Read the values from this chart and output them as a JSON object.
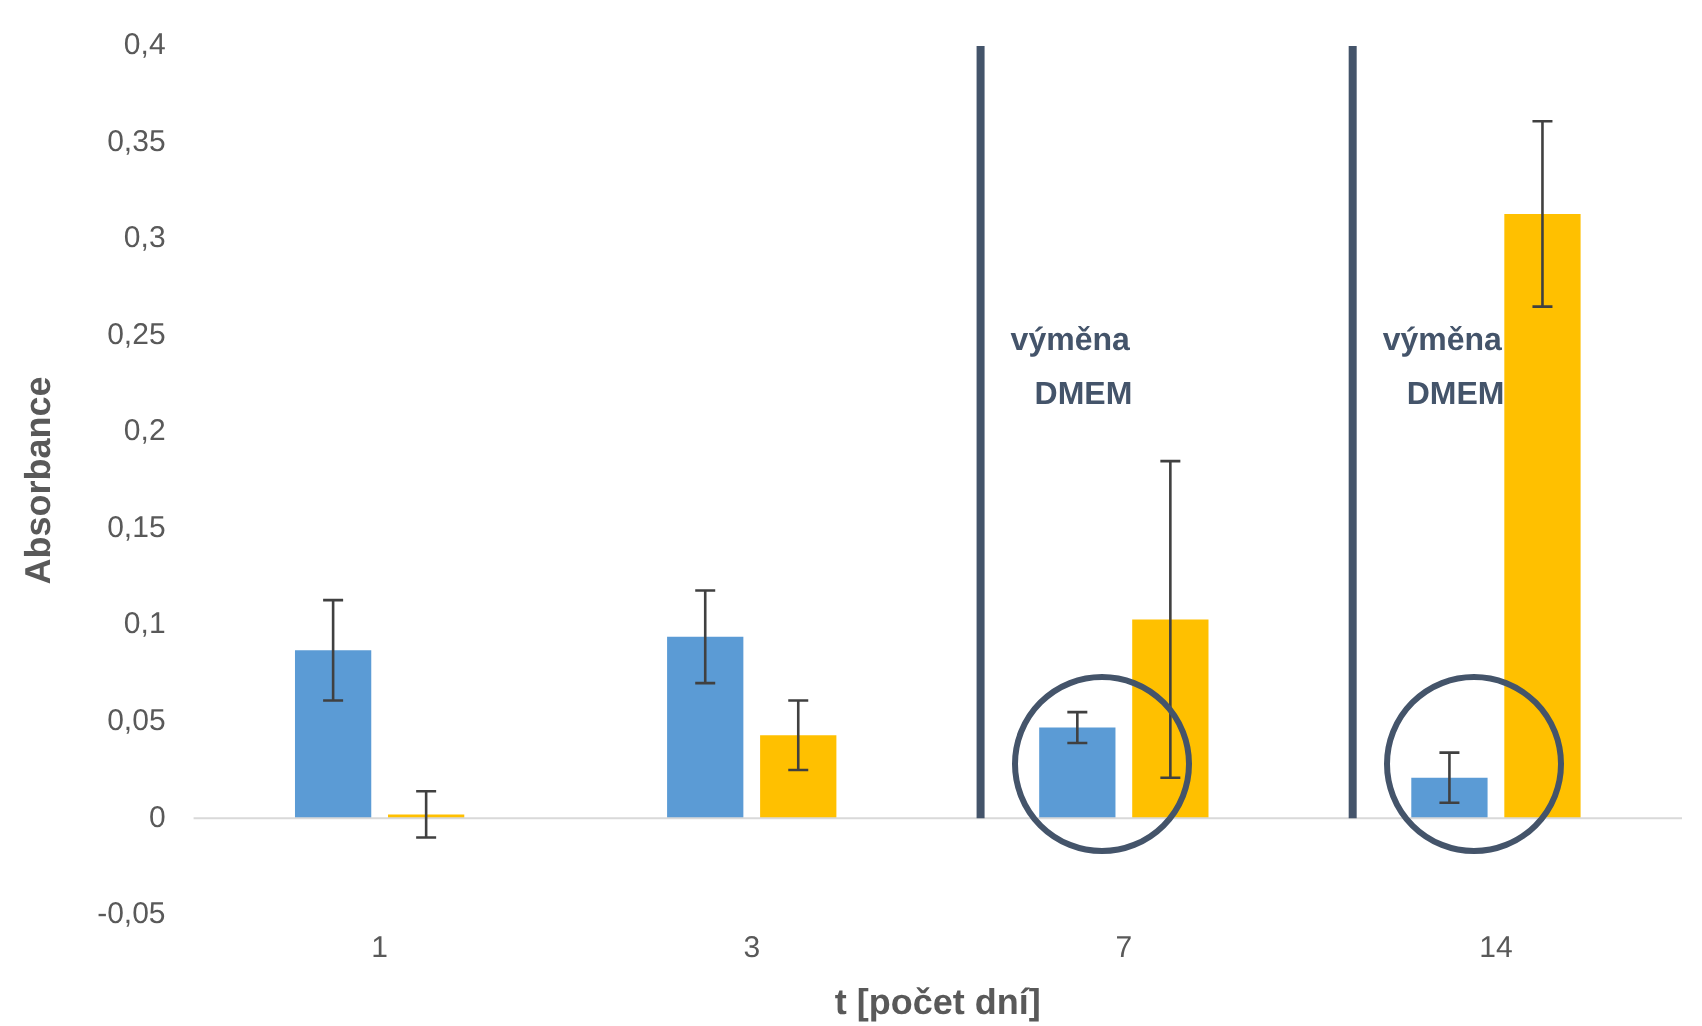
{
  "chart_data": {
    "type": "bar",
    "xlabel": "t [počet dní]",
    "ylabel": "Absorbance",
    "categories": [
      "1",
      "3",
      "7",
      "14"
    ],
    "series": [
      {
        "color": "#5b9bd5",
        "values": [
          0.087,
          0.094,
          0.047,
          0.021
        ],
        "errors": [
          0.026,
          0.024,
          0.008,
          0.013
        ]
      },
      {
        "color": "#ffc000",
        "values": [
          0.002,
          0.043,
          0.103,
          0.313
        ],
        "errors": [
          0.012,
          0.018,
          0.082,
          0.048
        ]
      }
    ],
    "ylim": [
      -0.05,
      0.4
    ],
    "yticks": [
      {
        "value": -0.05,
        "label": "-0,05"
      },
      0,
      {
        "value": 0.05,
        "label": "0,05"
      },
      {
        "value": 0.1,
        "label": "0,1"
      },
      {
        "value": 0.15,
        "label": "0,15"
      },
      {
        "value": 0.2,
        "label": "0,2"
      },
      {
        "value": 0.25,
        "label": "0,25"
      },
      {
        "value": 0.3,
        "label": "0,3"
      },
      {
        "value": 0.35,
        "label": "0,35"
      },
      {
        "value": 0.4,
        "label": "0,4"
      }
    ],
    "ref_lines": [
      {
        "axis": "y",
        "value": 0,
        "color": "#d9d9d9"
      },
      {
        "axis": "x",
        "value": "7",
        "label": "výměna DMEM",
        "color": "#44546a"
      },
      {
        "axis": "x",
        "value": "14",
        "label": "výměna DMEM",
        "color": "#44546a"
      }
    ],
    "grid": false,
    "legend": false
  }
}
